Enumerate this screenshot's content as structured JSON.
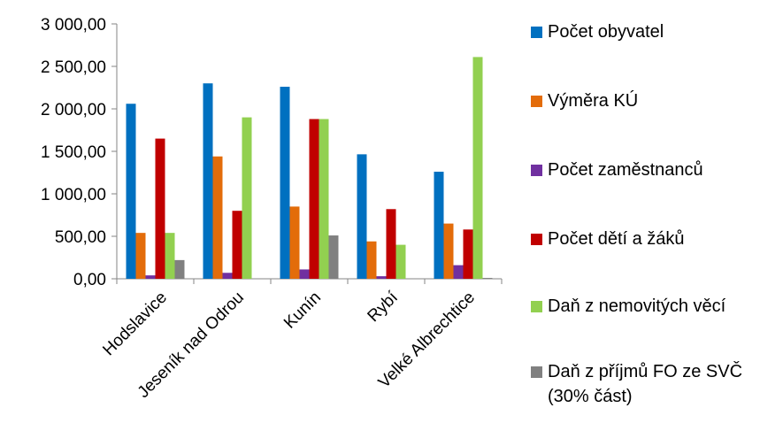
{
  "chart_data": {
    "type": "bar",
    "categories": [
      "Hodslavice",
      "Jeseník nad Odrou",
      "Kunín",
      "Rybí",
      "Velké Albrechtice"
    ],
    "series": [
      {
        "name": "Počet obyvatel",
        "color": "#0070C0",
        "values": [
          2060,
          2300,
          2260,
          1465,
          1260
        ]
      },
      {
        "name": "Výměra KÚ",
        "color": "#E36C0A",
        "values": [
          540,
          1440,
          850,
          440,
          650
        ]
      },
      {
        "name": "Počet zaměstnanců",
        "color": "#7030A0",
        "values": [
          40,
          70,
          110,
          30,
          160
        ]
      },
      {
        "name": "Počet dětí a žáků",
        "color": "#C00000",
        "values": [
          1650,
          800,
          1880,
          820,
          580
        ]
      },
      {
        "name": "Daň z nemovitých věcí",
        "color": "#92D050",
        "values": [
          540,
          1900,
          1880,
          400,
          2610
        ]
      },
      {
        "name": "Daň z příjmů FO ze SVČ (30% část)",
        "color": "#808080",
        "values": [
          220,
          0,
          510,
          0,
          10
        ]
      }
    ],
    "y_ticks": [
      "0,00",
      "500,00",
      "1 000,00",
      "1 500,00",
      "2 000,00",
      "2 500,00",
      "3 000,00"
    ],
    "ylim": [
      0,
      3000
    ],
    "grid": false,
    "legend_position": "right"
  }
}
